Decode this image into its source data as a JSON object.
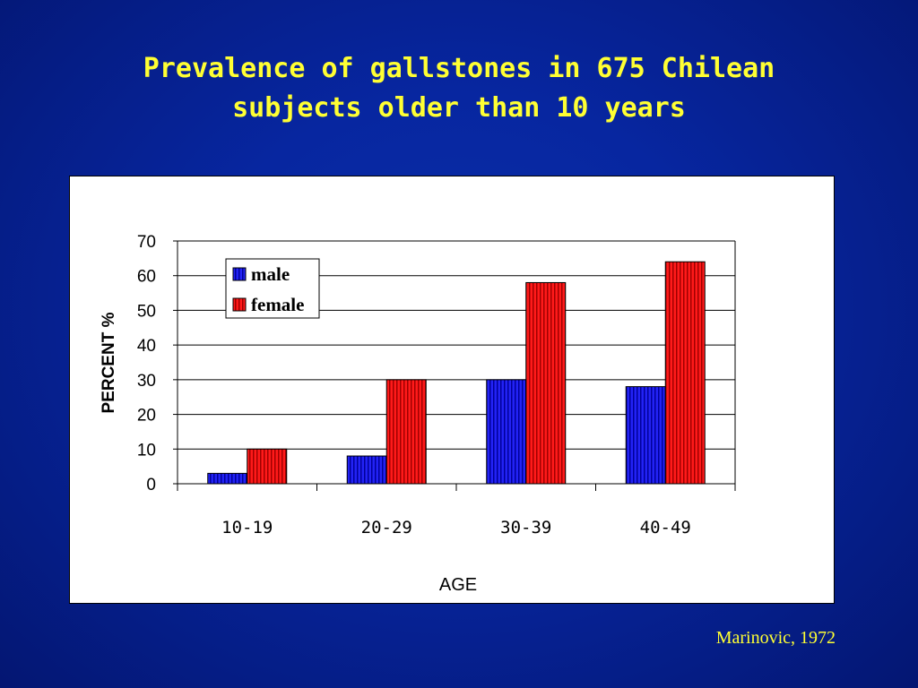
{
  "slide": {
    "title_line1": "Prevalence of gallstones in 675 Chilean",
    "title_line2": "subjects older than 10 years",
    "citation": "Marinovic, 1972"
  },
  "chart_data": {
    "type": "bar",
    "categories": [
      "10-19",
      "20-29",
      "30-39",
      "40-49"
    ],
    "series": [
      {
        "name": "male",
        "values": [
          3,
          8,
          30,
          28
        ],
        "color": "#1e1ef0"
      },
      {
        "name": "female",
        "values": [
          10,
          30,
          58,
          64
        ],
        "color": "#ff1010"
      }
    ],
    "xlabel": "AGE",
    "ylabel": "PERCENT %",
    "ylim": [
      0,
      70
    ],
    "yticks": [
      0,
      10,
      20,
      30,
      40,
      50,
      60,
      70
    ],
    "grid": true,
    "legend_position": "top-left"
  }
}
